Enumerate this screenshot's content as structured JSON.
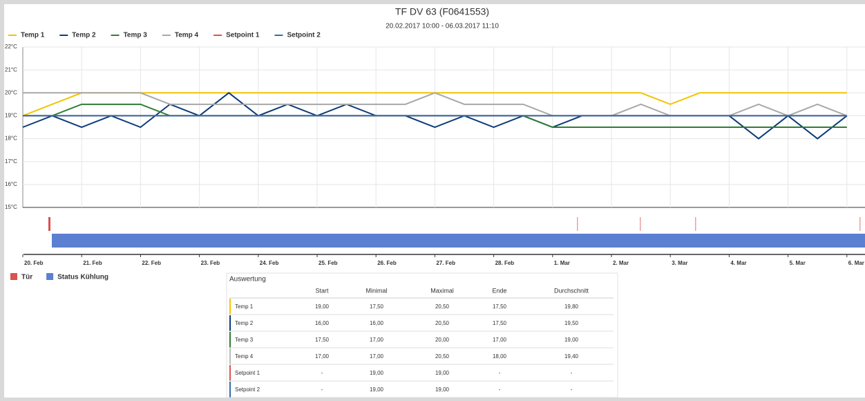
{
  "chart_data": {
    "type": "line",
    "title": "TF DV 63 (F0641553)",
    "subtitle": "20.02.2017 10:00 - 06.03.2017 11:10",
    "categories": [
      "20. Feb",
      null,
      "21. Feb",
      null,
      "22. Feb",
      null,
      "23. Feb",
      null,
      "24. Feb",
      null,
      "25. Feb",
      null,
      "26. Feb",
      null,
      "27. Feb",
      null,
      "28. Feb",
      null,
      "1. Mar",
      null,
      "2. Mar",
      null,
      "3. Mar",
      null,
      "4. Mar",
      null,
      "5. Mar",
      null,
      "6. Mar"
    ],
    "series": [
      {
        "name": "Temp 1",
        "color": "#f2c500",
        "values": [
          19,
          19.5,
          20,
          20,
          20,
          20,
          20,
          20,
          20,
          20,
          20,
          20,
          20,
          20,
          20,
          20,
          20,
          20,
          20,
          20,
          20,
          20,
          19.5,
          20,
          20,
          20,
          20,
          20,
          20
        ]
      },
      {
        "name": "Temp 2",
        "color": "#0d3c78",
        "values": [
          18.5,
          19,
          18.5,
          19,
          18.5,
          19.5,
          19,
          20,
          19,
          19.5,
          19,
          19.5,
          19,
          19,
          18.5,
          19,
          18.5,
          19,
          18.5,
          19,
          19,
          19,
          19,
          19,
          19,
          18,
          19,
          18,
          19
        ]
      },
      {
        "name": "Temp 3",
        "color": "#2e7d32",
        "values": [
          19,
          19,
          19.5,
          19.5,
          19.5,
          19,
          19,
          19,
          19,
          19,
          19,
          19,
          19,
          19,
          19,
          19,
          19,
          19,
          18.5,
          18.5,
          18.5,
          18.5,
          18.5,
          18.5,
          18.5,
          18.5,
          18.5,
          18.5,
          18.5
        ]
      },
      {
        "name": "Temp 4",
        "color": "#a8a8a8",
        "values": [
          20,
          20,
          20,
          20,
          20,
          19.5,
          19.5,
          19.5,
          19.5,
          19.5,
          19.5,
          19.5,
          19.5,
          19.5,
          20,
          19.5,
          19.5,
          19.5,
          19,
          19,
          19,
          19.5,
          19,
          19,
          19,
          19.5,
          19,
          19.5,
          19
        ]
      },
      {
        "name": "Setpoint 1",
        "color": "#d9534f",
        "values": [
          19,
          19,
          19,
          19,
          19,
          19,
          19,
          19,
          19,
          19,
          19,
          19,
          19,
          19,
          19,
          19,
          19,
          19,
          19,
          19,
          19,
          19,
          19,
          19,
          19,
          19,
          19,
          19,
          19
        ]
      },
      {
        "name": "Setpoint 2",
        "color": "#2f6fa8",
        "values": [
          19,
          19,
          19,
          19,
          19,
          19,
          19,
          19,
          19,
          19,
          19,
          19,
          19,
          19,
          19,
          19,
          19,
          19,
          19,
          19,
          19,
          19,
          19,
          19,
          19,
          19,
          19,
          19,
          19
        ]
      }
    ],
    "ylim": [
      15,
      22
    ],
    "yticks": [
      {
        "value": 15,
        "label": "15°C"
      },
      {
        "value": 16,
        "label": "16°C"
      },
      {
        "value": 17,
        "label": "17°C"
      },
      {
        "value": 18,
        "label": "18°C"
      },
      {
        "value": 19,
        "label": "19°C"
      },
      {
        "value": 20,
        "label": "20°C"
      },
      {
        "value": 21,
        "label": "21°C"
      },
      {
        "value": 22,
        "label": "22°C"
      }
    ],
    "grid": true,
    "status_legend": [
      {
        "name": "Tür",
        "color": "#d9534f"
      },
      {
        "name": "Status Kühlung",
        "color": "#5b7fd1"
      }
    ]
  },
  "table": {
    "title": "Auswertung",
    "columns": [
      "Start",
      "Minimal",
      "Maximal",
      "Ende",
      "Durchschnitt"
    ],
    "rows": [
      {
        "label": "Temp 1",
        "color": "#f2c500",
        "cells": [
          "19,00",
          "17,50",
          "20,50",
          "17,50",
          "19,80"
        ]
      },
      {
        "label": "Temp 2",
        "color": "#0d3c78",
        "cells": [
          "16,00",
          "16,00",
          "20,50",
          "17,50",
          "19,50"
        ]
      },
      {
        "label": "Temp 3",
        "color": "#2e7d32",
        "cells": [
          "17,50",
          "17,00",
          "20,00",
          "17,00",
          "19,00"
        ]
      },
      {
        "label": "Temp 4",
        "color": "#bbbbbb",
        "cells": [
          "17,00",
          "17,00",
          "20,50",
          "18,00",
          "19,40"
        ]
      },
      {
        "label": "Setpoint 1",
        "color": "#d9534f",
        "cells": [
          "-",
          "19,00",
          "19,00",
          "-",
          "-"
        ]
      },
      {
        "label": "Setpoint 2",
        "color": "#2f6fa8",
        "cells": [
          "-",
          "19,00",
          "19,00",
          "-",
          "-"
        ]
      }
    ]
  }
}
